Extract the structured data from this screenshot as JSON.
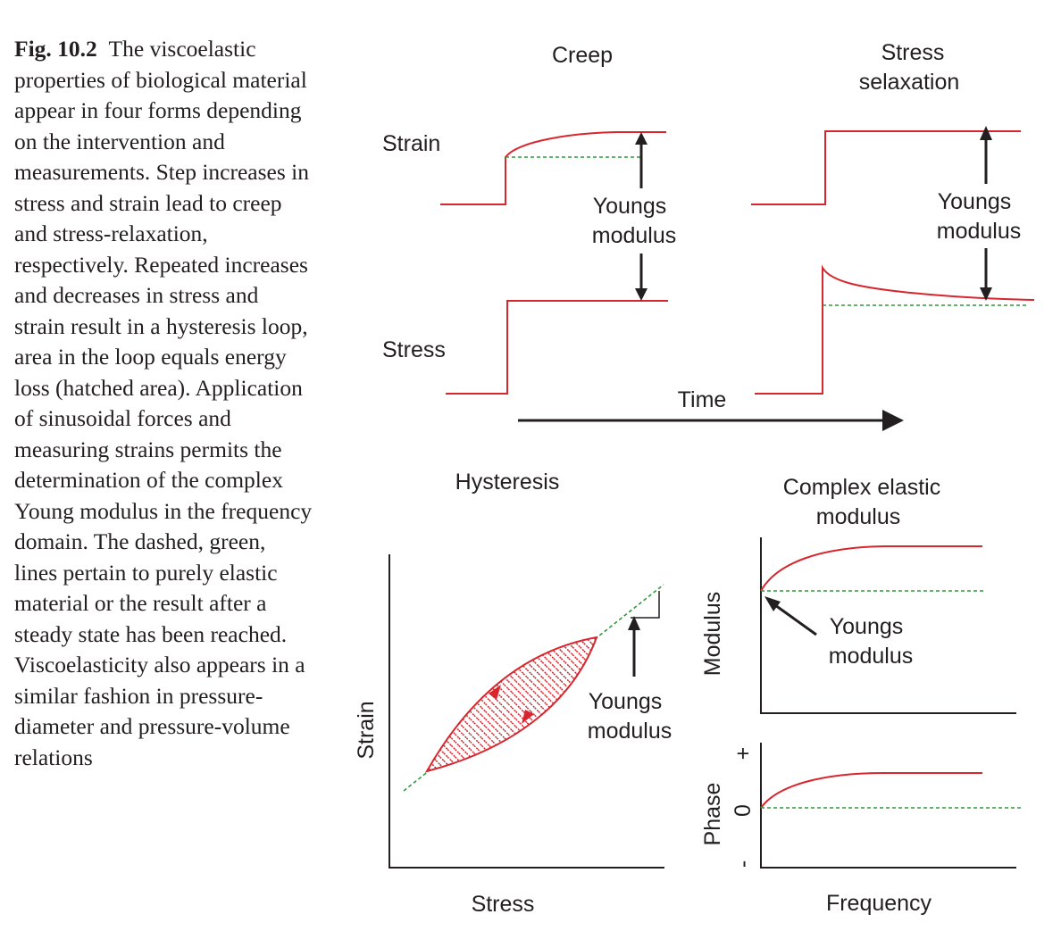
{
  "caption": {
    "label": "Fig. 10.2",
    "text": "The viscoelastic properties of biological material appear in four forms depending on the intervention and measurements. Step increases in stress and strain lead to creep and stress-relaxation, respectively. Repeated increases and decreases in stress and strain result in a hysteresis loop, area in the loop equals energy loss (hatched area). Application of sinusoidal forces and measuring strains permits the determination of the complex Young modulus in the frequency domain. The dashed, green, lines pertain to purely elastic material or the result after a steady state has been reached. Viscoelasticity also appears in a similar fashion in pressure-diameter and pressure-volume relations"
  },
  "creep": {
    "title": "Creep",
    "strain_label": "Strain",
    "stress_label": "Stress",
    "youngs_line1": "Youngs",
    "youngs_line2": "modulus"
  },
  "relaxation": {
    "title_line1": "Stress",
    "title_line2": "selaxation",
    "youngs_line1": "Youngs",
    "youngs_line2": "modulus"
  },
  "time_label": "Time",
  "hysteresis": {
    "title": "Hysteresis",
    "xlabel": "Stress",
    "ylabel": "Strain",
    "youngs_line1": "Youngs",
    "youngs_line2": "modulus"
  },
  "complex": {
    "title_line1": "Complex elastic",
    "title_line2": "modulus",
    "modulus_label": "Modulus",
    "phase_label": "Phase",
    "phase_plus": "+",
    "phase_zero": "0",
    "phase_minus": "-",
    "xlabel": "Frequency",
    "youngs_line1": "Youngs",
    "youngs_line2": "modulus"
  },
  "colors": {
    "viscoelastic_curve": "#d7262e",
    "elastic_dashed": "#2f9a3c",
    "text": "#231f20"
  }
}
